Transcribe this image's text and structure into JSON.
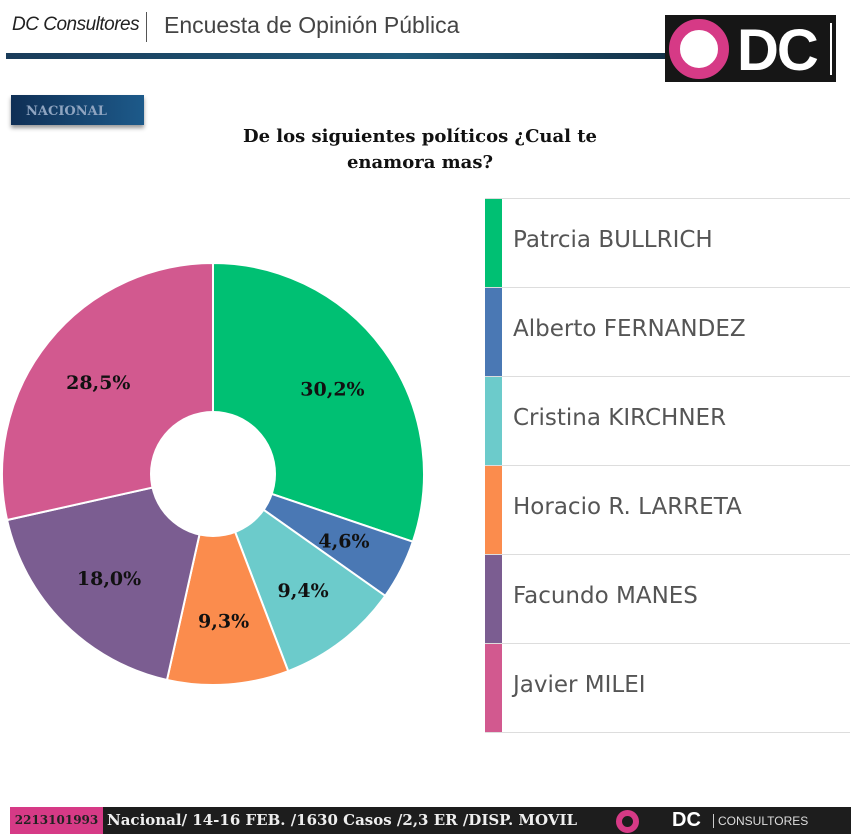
{
  "header": {
    "brand": "DC Consultores",
    "title": "Encuesta de Opinión Pública",
    "logo_text": "DC"
  },
  "badge": "NACIONAL",
  "chart_data": {
    "type": "pie",
    "title": "De los siguientes políticos ¿Cual te enamora mas?",
    "donut": true,
    "legend_position": "right",
    "categories": [
      "Patrcia BULLRICH",
      "Alberto FERNANDEZ",
      "Cristina KIRCHNER",
      "Horacio R. LARRETA",
      "Facundo MANES",
      "Javier MILEI"
    ],
    "values": [
      30.2,
      4.6,
      9.4,
      9.3,
      18.0,
      28.5
    ],
    "labels": [
      "30,2%",
      "4,6%",
      "9,4%",
      "9,3%",
      "18,0%",
      "28,5%"
    ],
    "colors": [
      "#00c073",
      "#4a78b4",
      "#6ccbcb",
      "#fb8c4d",
      "#7b5d91",
      "#d2598f"
    ]
  },
  "footer": {
    "phone": "2213101993",
    "details": "Nacional/ 14-16 FEB. /1630 Casos /2,3   ER /DISP. MOVIL",
    "logo_dc": "DC",
    "logo_text": "CONSULTORES"
  }
}
